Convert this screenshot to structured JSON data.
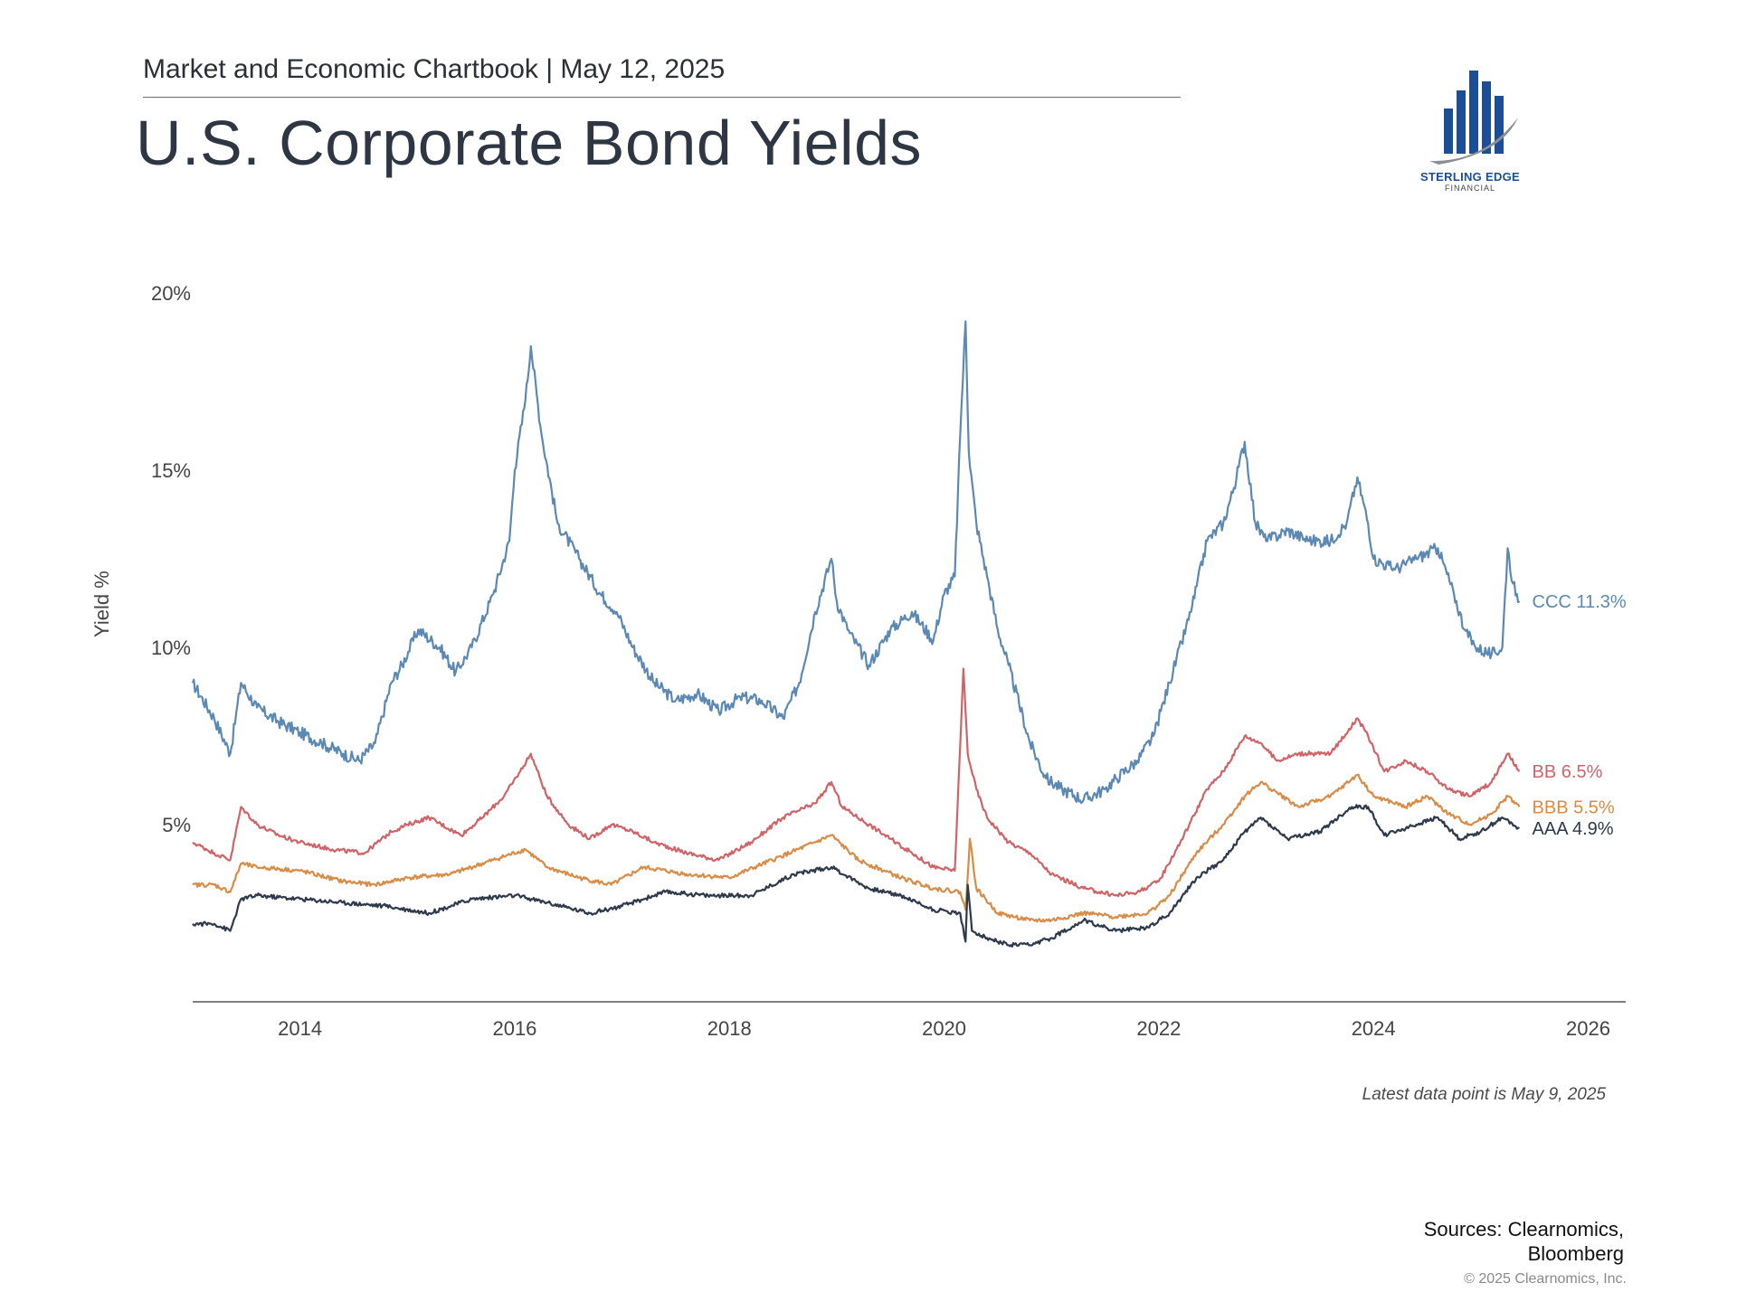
{
  "header": {
    "subtitle": "Market and Economic Chartbook | May 12, 2025",
    "title": "U.S. Corporate Bond Yields"
  },
  "logo": {
    "name": "STERLING EDGE",
    "sub": "FINANCIAL",
    "brand_color": "#1c4e96"
  },
  "note": "Latest data point is May 9, 2025",
  "sources": [
    "Sources: Clearnomics,",
    "Bloomberg"
  ],
  "copyright": "© 2025 Clearnomics, Inc.",
  "chart_data": {
    "type": "line",
    "ylabel": "Yield %",
    "xlabel": "",
    "xlim": [
      2013.0,
      2026.35
    ],
    "ylim": [
      0,
      20
    ],
    "yticks": [
      5,
      10,
      15,
      20
    ],
    "ytick_labels": [
      "5%",
      "10%",
      "15%",
      "20%"
    ],
    "xticks": [
      2014,
      2016,
      2018,
      2020,
      2022,
      2024,
      2026
    ],
    "xtick_labels": [
      "2014",
      "2016",
      "2018",
      "2020",
      "2022",
      "2024",
      "2026"
    ],
    "grid": false,
    "series": [
      {
        "name": "CCC",
        "end_label": "CCC 11.3%",
        "color": "#5b89b3",
        "x": [
          2013.0,
          2013.2,
          2013.35,
          2013.45,
          2013.6,
          2013.8,
          2014.0,
          2014.2,
          2014.4,
          2014.55,
          2014.7,
          2014.85,
          2014.95,
          2015.1,
          2015.3,
          2015.45,
          2015.6,
          2015.8,
          2015.95,
          2016.0,
          2016.1,
          2016.15,
          2016.25,
          2016.4,
          2016.6,
          2016.8,
          2016.95,
          2017.1,
          2017.3,
          2017.5,
          2017.7,
          2017.9,
          2018.1,
          2018.3,
          2018.5,
          2018.65,
          2018.8,
          2018.95,
          2019.0,
          2019.1,
          2019.3,
          2019.5,
          2019.7,
          2019.9,
          2020.0,
          2020.1,
          2020.15,
          2020.2,
          2020.23,
          2020.3,
          2020.4,
          2020.5,
          2020.6,
          2020.8,
          2020.95,
          2021.1,
          2021.3,
          2021.5,
          2021.6,
          2021.8,
          2021.95,
          2022.1,
          2022.3,
          2022.45,
          2022.6,
          2022.7,
          2022.8,
          2022.9,
          2023.0,
          2023.2,
          2023.4,
          2023.6,
          2023.75,
          2023.85,
          2023.95,
          2024.0,
          2024.2,
          2024.4,
          2024.6,
          2024.75,
          2024.85,
          2024.95,
          2025.1,
          2025.2,
          2025.25,
          2025.3,
          2025.36
        ],
        "y": [
          9.0,
          8.0,
          7.0,
          9.0,
          8.3,
          7.9,
          7.6,
          7.3,
          7.0,
          6.8,
          7.3,
          9.0,
          9.5,
          10.5,
          10.0,
          9.3,
          10.0,
          11.5,
          13.0,
          15.0,
          17.0,
          18.5,
          16.0,
          13.5,
          12.5,
          11.5,
          11.0,
          10.0,
          9.0,
          8.5,
          8.7,
          8.2,
          8.6,
          8.5,
          8.0,
          9.0,
          11.0,
          12.5,
          11.3,
          10.5,
          9.5,
          10.5,
          11.0,
          10.2,
          11.5,
          12.0,
          16.0,
          19.2,
          15.5,
          13.5,
          12.0,
          10.5,
          9.5,
          7.3,
          6.3,
          6.0,
          5.7,
          6.0,
          6.3,
          6.8,
          7.5,
          9.0,
          11.0,
          13.0,
          13.5,
          14.5,
          15.8,
          13.5,
          13.0,
          13.3,
          13.0,
          13.0,
          13.5,
          14.8,
          13.5,
          12.5,
          12.2,
          12.5,
          12.8,
          11.5,
          10.5,
          10.0,
          9.8,
          10.0,
          12.8,
          11.8,
          11.3
        ]
      },
      {
        "name": "BB",
        "end_label": "BB 6.5%",
        "color": "#d06368",
        "x": [
          2013.0,
          2013.2,
          2013.35,
          2013.45,
          2013.6,
          2013.8,
          2014.0,
          2014.3,
          2014.6,
          2014.85,
          2015.0,
          2015.2,
          2015.5,
          2015.7,
          2015.9,
          2016.05,
          2016.15,
          2016.3,
          2016.5,
          2016.7,
          2016.9,
          2017.1,
          2017.3,
          2017.6,
          2017.9,
          2018.2,
          2018.5,
          2018.8,
          2018.95,
          2019.05,
          2019.3,
          2019.5,
          2019.7,
          2019.9,
          2020.1,
          2020.18,
          2020.22,
          2020.3,
          2020.4,
          2020.6,
          2020.8,
          2021.0,
          2021.3,
          2021.6,
          2021.8,
          2022.0,
          2022.2,
          2022.45,
          2022.6,
          2022.8,
          2022.95,
          2023.1,
          2023.3,
          2023.6,
          2023.85,
          2023.95,
          2024.1,
          2024.3,
          2024.5,
          2024.7,
          2024.9,
          2025.1,
          2025.25,
          2025.36
        ],
        "y": [
          4.5,
          4.2,
          4.0,
          5.5,
          5.0,
          4.7,
          4.5,
          4.3,
          4.2,
          4.8,
          5.0,
          5.2,
          4.7,
          5.2,
          5.8,
          6.5,
          7.0,
          5.8,
          5.0,
          4.6,
          5.0,
          4.8,
          4.5,
          4.2,
          4.0,
          4.5,
          5.2,
          5.6,
          6.2,
          5.5,
          5.0,
          4.6,
          4.2,
          3.8,
          3.7,
          9.4,
          7.0,
          6.0,
          5.2,
          4.5,
          4.2,
          3.6,
          3.2,
          3.0,
          3.1,
          3.4,
          4.5,
          6.0,
          6.5,
          7.5,
          7.3,
          6.8,
          7.0,
          7.0,
          8.0,
          7.5,
          6.5,
          6.8,
          6.5,
          6.0,
          5.8,
          6.2,
          7.0,
          6.5
        ]
      },
      {
        "name": "BBB",
        "end_label": "BBB 5.5%",
        "color": "#d98c47",
        "x": [
          2013.0,
          2013.2,
          2013.35,
          2013.45,
          2013.6,
          2014.0,
          2014.4,
          2014.7,
          2015.0,
          2015.4,
          2015.8,
          2016.1,
          2016.3,
          2016.6,
          2016.9,
          2017.2,
          2017.6,
          2018.0,
          2018.4,
          2018.8,
          2018.95,
          2019.2,
          2019.6,
          2019.9,
          2020.15,
          2020.2,
          2020.24,
          2020.3,
          2020.5,
          2020.8,
          2021.0,
          2021.3,
          2021.6,
          2021.9,
          2022.1,
          2022.35,
          2022.6,
          2022.8,
          2022.95,
          2023.3,
          2023.6,
          2023.85,
          2024.0,
          2024.3,
          2024.5,
          2024.7,
          2024.9,
          2025.1,
          2025.25,
          2025.36
        ],
        "y": [
          3.3,
          3.3,
          3.1,
          3.9,
          3.8,
          3.7,
          3.4,
          3.3,
          3.5,
          3.6,
          4.0,
          4.3,
          3.8,
          3.5,
          3.3,
          3.8,
          3.6,
          3.5,
          4.0,
          4.5,
          4.7,
          4.0,
          3.5,
          3.2,
          3.1,
          2.6,
          4.6,
          3.2,
          2.5,
          2.3,
          2.3,
          2.5,
          2.4,
          2.5,
          3.0,
          4.2,
          5.0,
          5.8,
          6.2,
          5.5,
          5.8,
          6.4,
          5.8,
          5.5,
          5.8,
          5.3,
          5.0,
          5.3,
          5.8,
          5.5
        ]
      },
      {
        "name": "AAA",
        "end_label": "AAA 4.9%",
        "color": "#2e3a4b",
        "x": [
          2013.0,
          2013.2,
          2013.35,
          2013.45,
          2013.6,
          2014.0,
          2014.4,
          2014.8,
          2015.2,
          2015.6,
          2016.0,
          2016.3,
          2016.7,
          2017.0,
          2017.4,
          2017.8,
          2018.2,
          2018.6,
          2018.95,
          2019.3,
          2019.6,
          2019.9,
          2020.15,
          2020.2,
          2020.22,
          2020.26,
          2020.4,
          2020.6,
          2020.8,
          2021.0,
          2021.3,
          2021.6,
          2021.9,
          2022.1,
          2022.35,
          2022.6,
          2022.8,
          2022.95,
          2023.2,
          2023.5,
          2023.8,
          2023.95,
          2024.1,
          2024.4,
          2024.6,
          2024.8,
          2025.0,
          2025.2,
          2025.36
        ],
        "y": [
          2.2,
          2.2,
          2.0,
          2.9,
          3.0,
          2.9,
          2.8,
          2.7,
          2.5,
          2.9,
          3.0,
          2.8,
          2.5,
          2.7,
          3.1,
          3.0,
          3.0,
          3.6,
          3.8,
          3.2,
          3.0,
          2.6,
          2.5,
          1.7,
          3.3,
          2.0,
          1.8,
          1.6,
          1.6,
          1.8,
          2.3,
          2.0,
          2.1,
          2.5,
          3.5,
          4.0,
          4.8,
          5.2,
          4.6,
          4.8,
          5.5,
          5.5,
          4.7,
          5.0,
          5.2,
          4.6,
          4.8,
          5.2,
          4.9
        ]
      }
    ]
  }
}
